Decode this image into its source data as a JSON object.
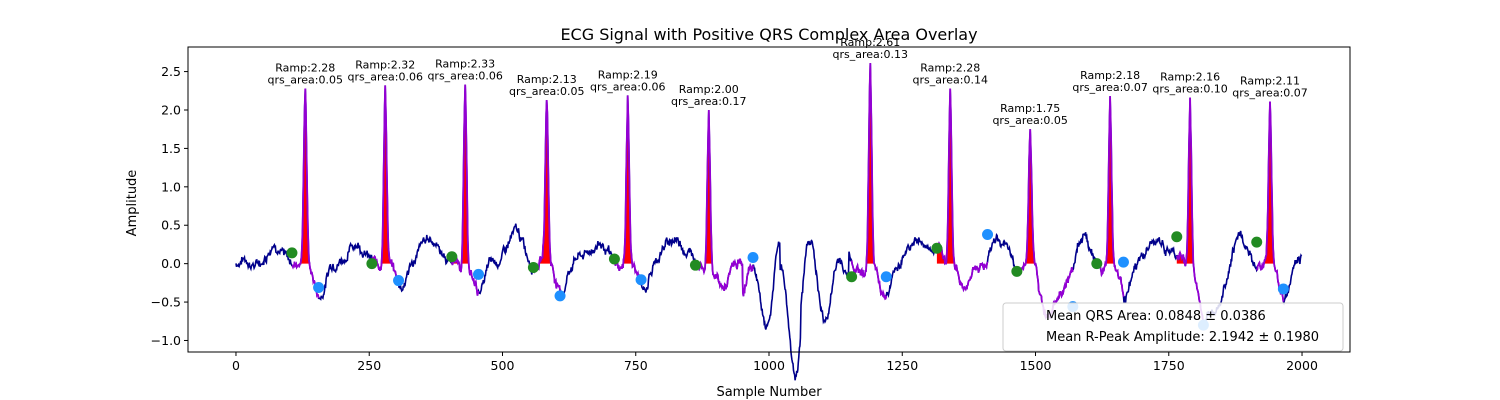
{
  "chart_data": {
    "type": "line",
    "title": "ECG Signal with Positive QRS Complex Area Overlay",
    "xlabel": "Sample Number",
    "ylabel": "Amplitude",
    "xlim": [
      -90,
      2090
    ],
    "ylim": [
      -1.15,
      2.82
    ],
    "xticks": [
      0,
      250,
      500,
      750,
      1000,
      1250,
      1500,
      1750,
      2000
    ],
    "yticks": [
      -1.0,
      -0.5,
      0.0,
      0.5,
      1.0,
      1.5,
      2.0,
      2.5
    ],
    "grid": false,
    "legend_position": "lower-right",
    "legend": [
      "Mean QRS Area: 0.0848 ± 0.0386",
      "Mean R-Peak Amplitude: 2.1942 ± 0.1980"
    ],
    "colors": {
      "signal": "#00008b",
      "qrs_segment": "#9400d3",
      "qrs_area": "#ff0000",
      "qrs_onset_marker": "#228b22",
      "qrs_offset_marker": "#1e90ff"
    },
    "beats": [
      {
        "onset": 105,
        "onset_amp": 0.14,
        "r_peak": 130,
        "r_amp": 2.28,
        "offset": 155,
        "offset_amp": -0.31,
        "label_ramp": "Ramp:2.28",
        "label_area": "qrs_area:0.05"
      },
      {
        "onset": 255,
        "onset_amp": 0.0,
        "r_peak": 280,
        "r_amp": 2.32,
        "offset": 305,
        "offset_amp": -0.22,
        "label_ramp": "Ramp:2.32",
        "label_area": "qrs_area:0.06"
      },
      {
        "onset": 405,
        "onset_amp": 0.09,
        "r_peak": 430,
        "r_amp": 2.33,
        "offset": 455,
        "offset_amp": -0.14,
        "label_ramp": "Ramp:2.33",
        "label_area": "qrs_area:0.06"
      },
      {
        "onset": 558,
        "onset_amp": -0.05,
        "r_peak": 583,
        "r_amp": 2.13,
        "offset": 608,
        "offset_amp": -0.42,
        "label_ramp": "Ramp:2.13",
        "label_area": "qrs_area:0.05"
      },
      {
        "onset": 710,
        "onset_amp": 0.06,
        "r_peak": 735,
        "r_amp": 2.19,
        "offset": 760,
        "offset_amp": -0.21,
        "label_ramp": "Ramp:2.19",
        "label_area": "qrs_area:0.06"
      },
      {
        "onset": 862,
        "onset_amp": -0.02,
        "r_peak": 887,
        "r_amp": 2.0,
        "offset": 970,
        "offset_amp": 0.08,
        "label_ramp": "Ramp:2.00",
        "label_area": "qrs_area:0.17"
      },
      {
        "onset": 1155,
        "onset_amp": -0.17,
        "r_peak": 1190,
        "r_amp": 2.61,
        "offset": 1220,
        "offset_amp": -0.17,
        "label_ramp": "Ramp:2.61",
        "label_area": "qrs_area:0.13"
      },
      {
        "onset": 1315,
        "onset_amp": 0.2,
        "r_peak": 1340,
        "r_amp": 2.28,
        "offset": 1410,
        "offset_amp": 0.38,
        "label_ramp": "Ramp:2.28",
        "label_area": "qrs_area:0.14"
      },
      {
        "onset": 1465,
        "onset_amp": -0.1,
        "r_peak": 1490,
        "r_amp": 1.75,
        "offset": 1570,
        "offset_amp": -0.56,
        "label_ramp": "Ramp:1.75",
        "label_area": "qrs_area:0.05"
      },
      {
        "onset": 1615,
        "onset_amp": 0.0,
        "r_peak": 1640,
        "r_amp": 2.18,
        "offset": 1665,
        "offset_amp": 0.02,
        "label_ramp": "Ramp:2.18",
        "label_area": "qrs_area:0.07"
      },
      {
        "onset": 1765,
        "onset_amp": 0.35,
        "r_peak": 1790,
        "r_amp": 2.16,
        "offset": 1815,
        "offset_amp": -0.8,
        "label_ramp": "Ramp:2.16",
        "label_area": "qrs_area:0.10"
      },
      {
        "onset": 1915,
        "onset_amp": 0.28,
        "r_peak": 1940,
        "r_amp": 2.11,
        "offset": 1965,
        "offset_amp": -0.33,
        "label_ramp": "Ramp:2.11",
        "label_area": "qrs_area:0.07"
      }
    ]
  }
}
